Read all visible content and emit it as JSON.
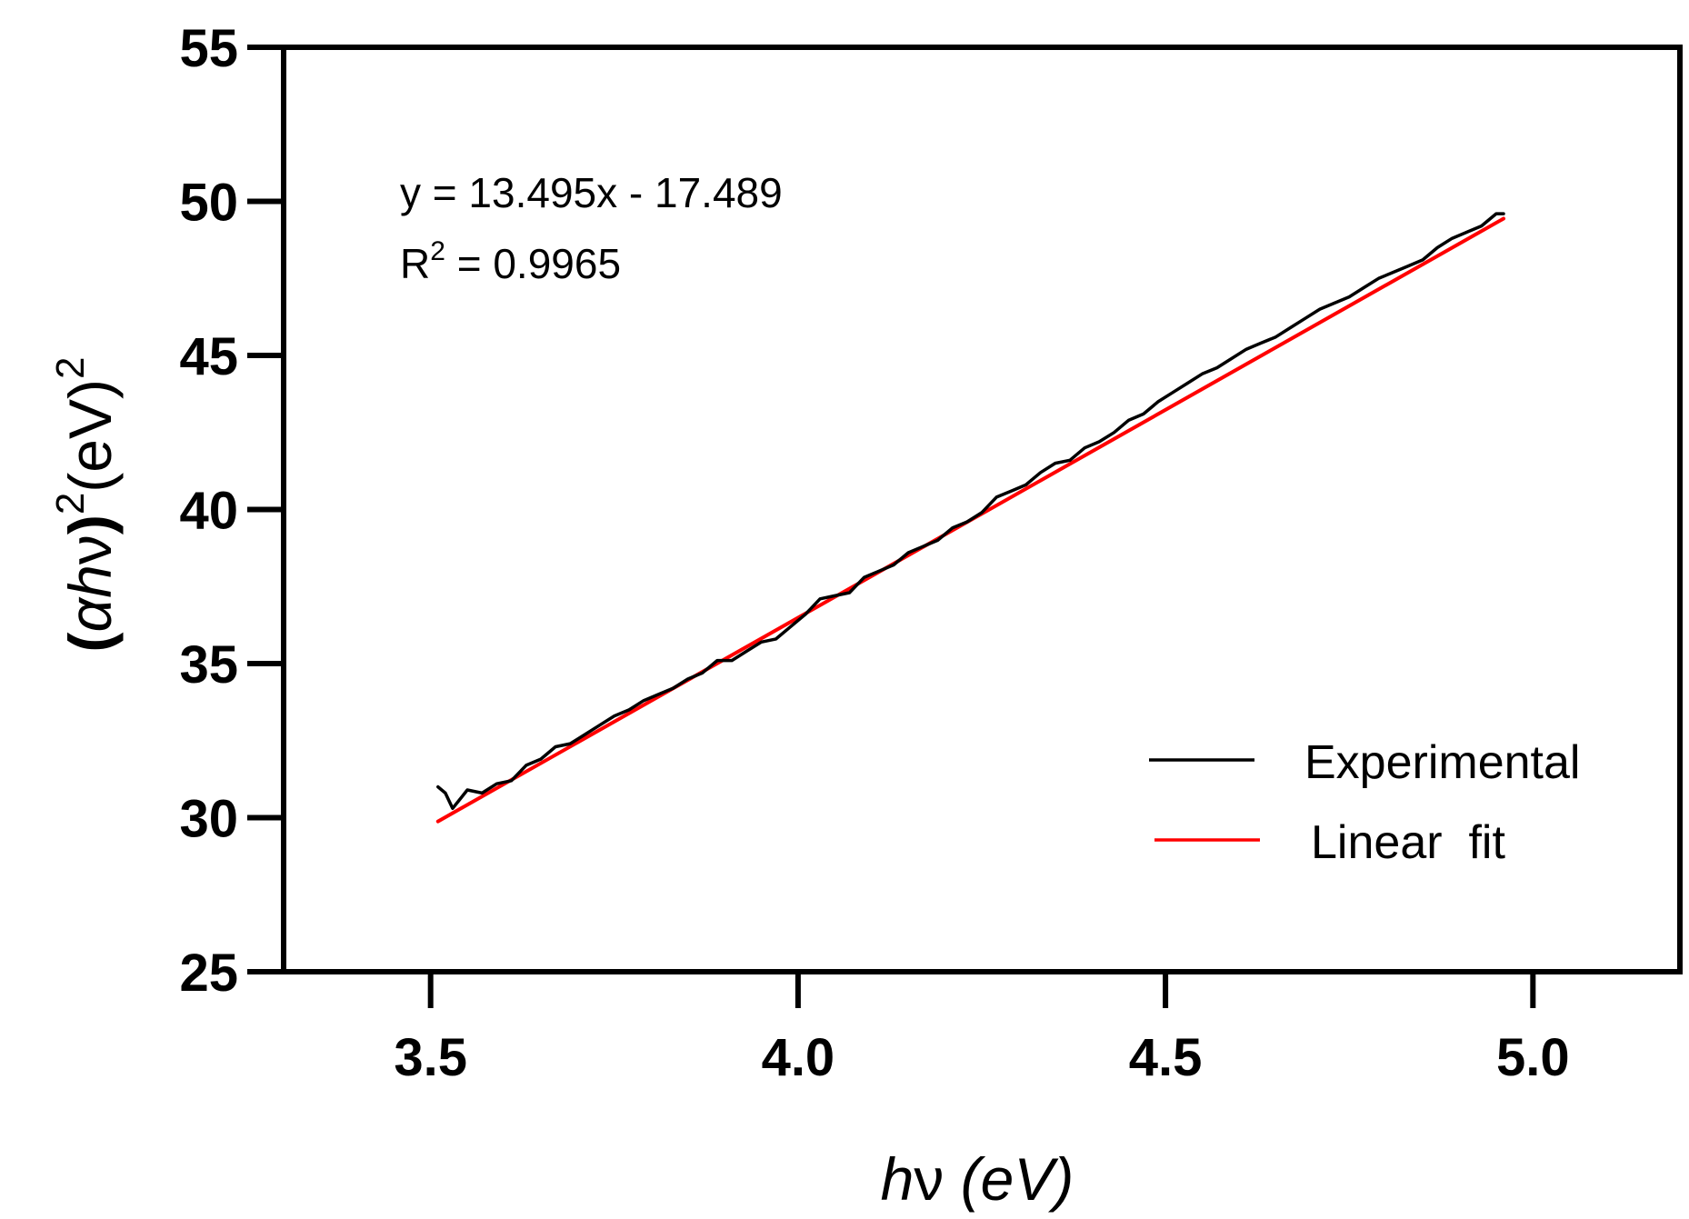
{
  "chart_data": {
    "type": "line",
    "title": "",
    "xlabel": {
      "h": "h",
      "nu": "ν",
      "unit": " (eV)"
    },
    "ylabel": {
      "open": "(",
      "alpha": "α",
      "h": "h",
      "nu": "ν",
      "close": ")",
      "exp": "2",
      "unit": "(eV)",
      "unit_exp": "2"
    },
    "xlim": [
      3.3,
      5.2
    ],
    "ylim": [
      25,
      55
    ],
    "xticks": [
      3.5,
      4.0,
      4.5,
      5.0
    ],
    "xtick_labels": [
      "3.5",
      "4.0",
      "4.5",
      "5.0"
    ],
    "yticks": [
      25,
      30,
      35,
      40,
      45,
      50,
      55
    ],
    "ytick_labels": [
      "25",
      "30",
      "35",
      "40",
      "45",
      "50",
      "55"
    ],
    "grid": false,
    "legend_position": "bottom-right",
    "annotation": {
      "equation": "y = 13.495x - 17.489",
      "r2_prefix": "R",
      "r2_exp": "2",
      "r2_value": " = 0.9965"
    },
    "series": [
      {
        "name": "Experimental",
        "color": "#000000",
        "x": [
          3.51,
          3.52,
          3.53,
          3.55,
          3.57,
          3.59,
          3.61,
          3.63,
          3.65,
          3.67,
          3.69,
          3.71,
          3.73,
          3.75,
          3.77,
          3.79,
          3.81,
          3.83,
          3.85,
          3.87,
          3.89,
          3.91,
          3.93,
          3.95,
          3.97,
          3.99,
          4.01,
          4.03,
          4.05,
          4.07,
          4.09,
          4.11,
          4.13,
          4.15,
          4.17,
          4.19,
          4.21,
          4.23,
          4.25,
          4.27,
          4.29,
          4.31,
          4.33,
          4.35,
          4.37,
          4.39,
          4.41,
          4.43,
          4.45,
          4.47,
          4.49,
          4.51,
          4.53,
          4.55,
          4.57,
          4.59,
          4.61,
          4.63,
          4.65,
          4.67,
          4.69,
          4.71,
          4.73,
          4.75,
          4.77,
          4.79,
          4.81,
          4.83,
          4.85,
          4.87,
          4.89,
          4.91,
          4.93,
          4.95,
          4.96
        ],
        "y": [
          31.0,
          30.8,
          30.3,
          30.9,
          30.8,
          31.1,
          31.2,
          31.7,
          31.9,
          32.3,
          32.4,
          32.7,
          33.0,
          33.3,
          33.5,
          33.8,
          34.0,
          34.2,
          34.5,
          34.7,
          35.1,
          35.1,
          35.4,
          35.7,
          35.8,
          36.2,
          36.6,
          37.1,
          37.2,
          37.3,
          37.8,
          38.0,
          38.2,
          38.6,
          38.8,
          39.0,
          39.4,
          39.6,
          39.9,
          40.4,
          40.6,
          40.8,
          41.2,
          41.5,
          41.6,
          42.0,
          42.2,
          42.5,
          42.9,
          43.1,
          43.5,
          43.8,
          44.1,
          44.4,
          44.6,
          44.9,
          45.2,
          45.4,
          45.6,
          45.9,
          46.2,
          46.5,
          46.7,
          46.9,
          47.2,
          47.5,
          47.7,
          47.9,
          48.1,
          48.5,
          48.8,
          49.0,
          49.2,
          49.6,
          49.6
        ]
      },
      {
        "name": "Linear  fit",
        "color": "#ff0000",
        "x": [
          3.51,
          4.96
        ],
        "y": [
          29.88,
          49.44
        ]
      }
    ]
  }
}
